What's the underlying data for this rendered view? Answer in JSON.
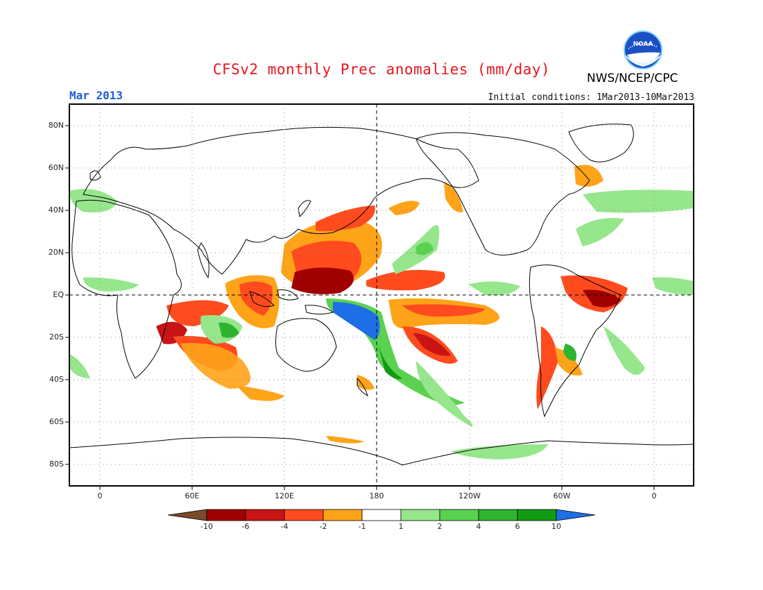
{
  "header": {
    "title": "CFSv2 monthly Prec anomalies (mm/day)",
    "agency": "NWS/NCEP/CPC",
    "month": "Mar 2013",
    "initial_conditions": "Initial conditions: 1Mar2013-10Mar2013",
    "logo_text": "NOAA"
  },
  "map": {
    "lat_labels": [
      "80N",
      "60N",
      "40N",
      "20N",
      "EQ",
      "20S",
      "40S",
      "60S",
      "80S"
    ],
    "lon_labels": [
      "0",
      "60E",
      "120E",
      "180",
      "120W",
      "60W",
      "0"
    ]
  },
  "colorbar": {
    "labels": [
      "-10",
      "-6",
      "-4",
      "-2",
      "-1",
      "1",
      "2",
      "4",
      "6",
      "10"
    ],
    "colors": {
      "lt_-10": "#7a4a2a",
      "-10_-6": "#a00000",
      "-6_-4": "#c81414",
      "-4_-2": "#ff4b1e",
      "-2_-1": "#ffa319",
      "-1_1": "#ffffff",
      "1_2": "#96e68c",
      "2_4": "#5ad250",
      "4_6": "#2eb42e",
      "6_10": "#129b12",
      "gt_10": "#1e6ee6"
    }
  }
}
